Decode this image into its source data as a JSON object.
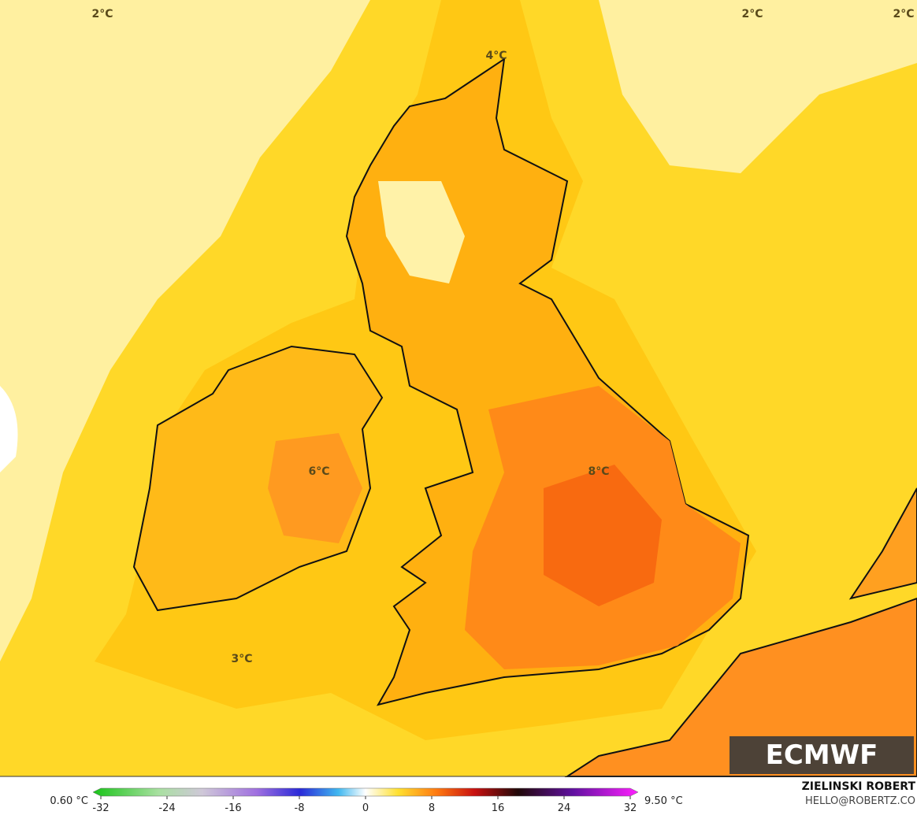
{
  "map_labels": [
    "2°C",
    "2°C",
    "2°C",
    "4°C",
    "6°C",
    "8°C",
    "3°C"
  ],
  "colorbar": {
    "min_label": "0.60 °C",
    "max_label": "9.50 °C",
    "ticks": [
      -32,
      -24,
      -16,
      -8,
      0,
      8,
      16,
      24,
      32
    ],
    "range": [
      -32,
      32
    ]
  },
  "logo": "ECMWF",
  "credit": {
    "name": "ZIELINSKI ROBERT",
    "email": "HELLO@ROBERTZ.CO"
  }
}
